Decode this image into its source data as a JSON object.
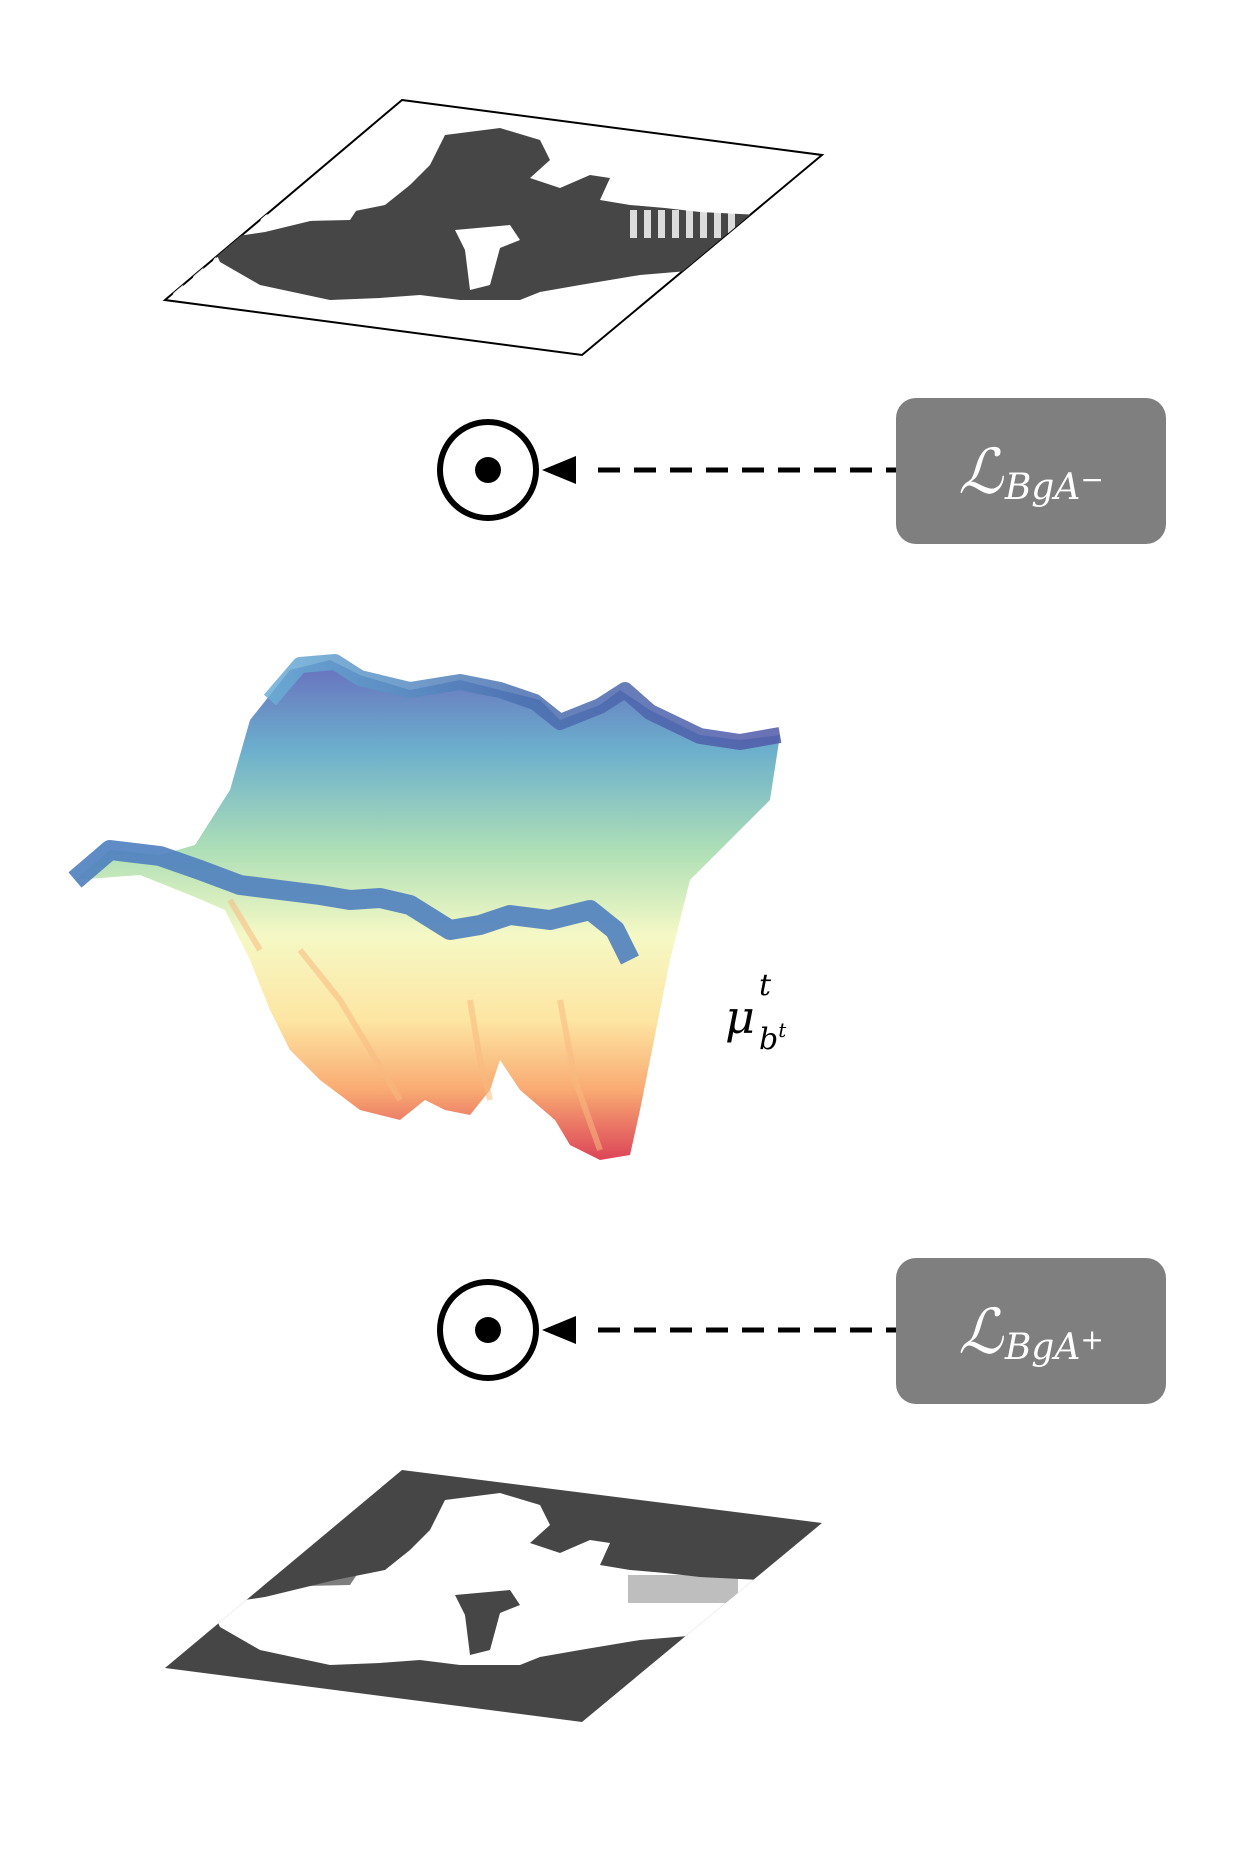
{
  "loss_top": {
    "symbol": "ℒ",
    "subscript": "BgA",
    "superscript": "−"
  },
  "loss_bottom": {
    "symbol": "ℒ",
    "subscript": "BgA",
    "superscript": "+"
  },
  "surface_label": {
    "symbol": "μ",
    "superscript": "t",
    "subscript": "b",
    "subscript_superscript": "t"
  },
  "colors": {
    "mask_fill": "#464646",
    "loss_box": "#7f7f7f",
    "surface_low": "#d9344a",
    "surface_mid": "#ffffbf",
    "surface_high": "#5e5eb4"
  }
}
